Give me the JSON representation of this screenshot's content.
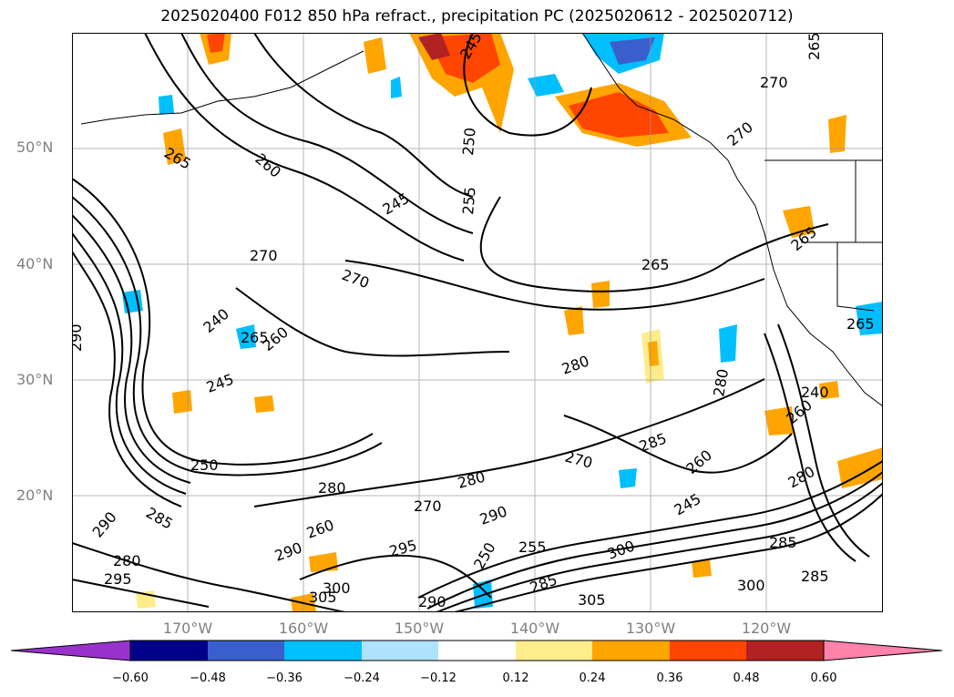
{
  "title": "2025020400 F012 850 hPa refract., precipitation PC (2025020612 - 2025020712)",
  "map": {
    "projection": "lat-lon",
    "lon_range": [
      -180,
      -110
    ],
    "lat_range": [
      10,
      60
    ],
    "lat_ticks": [
      {
        "value": 50,
        "label": "50°N"
      },
      {
        "value": 40,
        "label": "40°N"
      },
      {
        "value": 30,
        "label": "30°N"
      },
      {
        "value": 20,
        "label": "20°N"
      }
    ],
    "lon_ticks": [
      {
        "value": -170,
        "label": "170°W"
      },
      {
        "value": -160,
        "label": "160°W"
      },
      {
        "value": -150,
        "label": "150°W"
      },
      {
        "value": -140,
        "label": "140°W"
      },
      {
        "value": -130,
        "label": "130°W"
      },
      {
        "value": -120,
        "label": "120°W"
      }
    ],
    "gridlines": true,
    "contour_color": "#000000"
  },
  "contour_labels": [
    "245",
    "250",
    "255",
    "260",
    "265",
    "270",
    "280",
    "285",
    "290",
    "295",
    "300",
    "305",
    "240"
  ],
  "colorbar": {
    "ticks": [
      "−0.60",
      "−0.48",
      "−0.36",
      "−0.24",
      "−0.12",
      "0.12",
      "0.24",
      "0.36",
      "0.48",
      "0.60"
    ],
    "colors": [
      "#9932cc",
      "#00008b",
      "#3a5fcd",
      "#00bfff",
      "#b0e2ff",
      "#ffffff",
      "#ffec8b",
      "#ffa500",
      "#ff4500",
      "#b22222",
      "#ff82ab"
    ],
    "extend": "both"
  }
}
